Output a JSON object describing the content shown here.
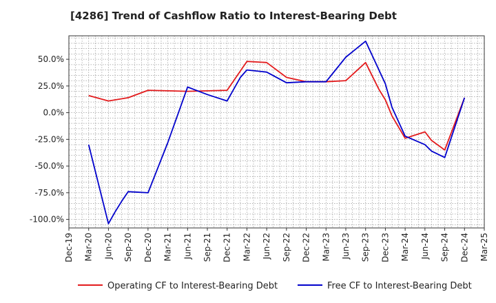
{
  "chart_data": {
    "type": "line",
    "title": "[4286]  Trend of Cashflow Ratio to Interest-Bearing Debt",
    "xlabel": "",
    "ylabel": "",
    "x_ticks": [
      "Dec-19",
      "Mar-20",
      "Jun-20",
      "Sep-20",
      "Dec-20",
      "Mar-21",
      "Jun-21",
      "Sep-21",
      "Dec-21",
      "Mar-22",
      "Jun-22",
      "Sep-22",
      "Dec-22",
      "Mar-23",
      "Jun-23",
      "Sep-23",
      "Dec-23",
      "Mar-24",
      "Jun-24",
      "Sep-24",
      "Dec-24",
      "Mar-25"
    ],
    "y_ticks": [
      50,
      25,
      0,
      -25,
      -50,
      -75,
      -100
    ],
    "y_tick_labels": [
      "50.0%",
      "25.0%",
      "0.0%",
      "-25.0%",
      "-50.0%",
      "-75.0%",
      "-100.0%"
    ],
    "ylim": [
      -108,
      72
    ],
    "grid": true,
    "legend_position": "bottom",
    "series": [
      {
        "name": "Operating CF to Interest-Bearing Debt",
        "color": "#e31a1c",
        "points": [
          {
            "x": "Mar-20",
            "y": 16
          },
          {
            "x": "Jun-20",
            "y": 11
          },
          {
            "x": "Sep-20",
            "y": 14
          },
          {
            "x": "Dec-20",
            "y": 21
          },
          {
            "x": "Jun-21",
            "y": 20
          },
          {
            "x": "Dec-21",
            "y": 21
          },
          {
            "x": "Mar-22",
            "y": 48
          },
          {
            "x": "Jun-22",
            "y": 47
          },
          {
            "x": "Sep-22",
            "y": 33
          },
          {
            "x": "Dec-22",
            "y": 29
          },
          {
            "x": "Mar-23",
            "y": 29
          },
          {
            "x": "Jun-23",
            "y": 30
          },
          {
            "x": "Sep-23",
            "y": 47
          },
          {
            "x": "Nov-23",
            "y": 22
          },
          {
            "x": "Dec-23",
            "y": 12
          },
          {
            "x": "Jan-24",
            "y": -3
          },
          {
            "x": "Mar-24",
            "y": -24
          },
          {
            "x": "Jun-24",
            "y": -18
          },
          {
            "x": "Jul-24",
            "y": -26
          },
          {
            "x": "Sep-24",
            "y": -35
          },
          {
            "x": "Dec-24",
            "y": 14
          }
        ]
      },
      {
        "name": "Free CF to Interest-Bearing Debt",
        "color": "#0000cc",
        "points": [
          {
            "x": "Mar-20",
            "y": -30
          },
          {
            "x": "Jun-20",
            "y": -104
          },
          {
            "x": "Jul-20",
            "y": -93
          },
          {
            "x": "Aug-20",
            "y": -83
          },
          {
            "x": "Sep-20",
            "y": -74
          },
          {
            "x": "Dec-20",
            "y": -75
          },
          {
            "x": "Mar-21",
            "y": -28
          },
          {
            "x": "Jun-21",
            "y": 24
          },
          {
            "x": "Sep-21",
            "y": 17
          },
          {
            "x": "Dec-21",
            "y": 11
          },
          {
            "x": "Feb-22",
            "y": 33
          },
          {
            "x": "Mar-22",
            "y": 40
          },
          {
            "x": "Jun-22",
            "y": 38
          },
          {
            "x": "Sep-22",
            "y": 28
          },
          {
            "x": "Dec-22",
            "y": 29
          },
          {
            "x": "Mar-23",
            "y": 29
          },
          {
            "x": "Jun-23",
            "y": 52
          },
          {
            "x": "Sep-23",
            "y": 67
          },
          {
            "x": "Dec-23",
            "y": 27
          },
          {
            "x": "Jan-24",
            "y": 5
          },
          {
            "x": "Mar-24",
            "y": -22
          },
          {
            "x": "Jun-24",
            "y": -30
          },
          {
            "x": "Jul-24",
            "y": -36
          },
          {
            "x": "Sep-24",
            "y": -42
          },
          {
            "x": "Dec-24",
            "y": 14
          }
        ]
      }
    ]
  }
}
